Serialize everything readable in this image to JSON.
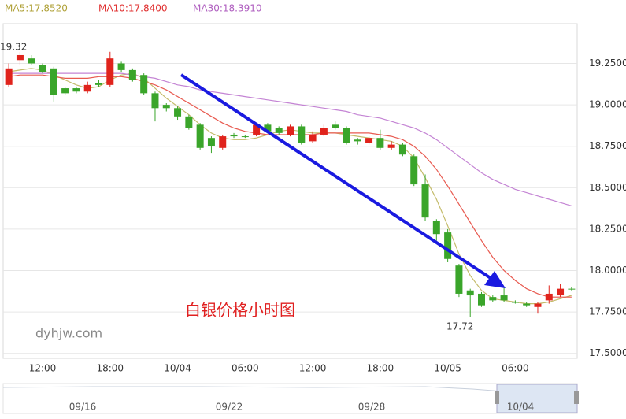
{
  "chart_data": {
    "type": "candlestick",
    "categories": [
      null,
      null,
      null,
      "12:00",
      null,
      null,
      null,
      null,
      null,
      "18:00",
      null,
      null,
      null,
      null,
      null,
      "10/04",
      null,
      null,
      null,
      null,
      null,
      "06:00",
      null,
      null,
      null,
      null,
      null,
      "12:00",
      null,
      null,
      null,
      null,
      null,
      "18:00",
      null,
      null,
      null,
      null,
      null,
      "10/05",
      null,
      null,
      null,
      null,
      null,
      "06:00",
      null,
      null,
      null,
      null,
      null
    ],
    "open": [
      19.12,
      19.27,
      19.28,
      19.24,
      19.22,
      19.1,
      19.1,
      19.08,
      19.13,
      19.12,
      19.25,
      19.21,
      19.18,
      19.07,
      19.0,
      18.98,
      18.93,
      18.88,
      18.8,
      18.74,
      18.82,
      18.81,
      18.82,
      18.88,
      18.86,
      18.82,
      18.87,
      18.78,
      18.82,
      18.88,
      18.86,
      18.79,
      18.77,
      18.8,
      18.74,
      18.76,
      18.69,
      18.52,
      18.3,
      18.23,
      18.03,
      17.88,
      17.86,
      17.84,
      17.85,
      17.81,
      17.8,
      17.78,
      17.82,
      17.85,
      17.89
    ],
    "high": [
      19.25,
      19.32,
      19.3,
      19.25,
      19.23,
      19.11,
      19.11,
      19.14,
      19.15,
      19.32,
      19.26,
      19.22,
      19.19,
      19.08,
      19.01,
      18.99,
      18.94,
      18.89,
      18.81,
      18.82,
      18.83,
      18.82,
      18.89,
      18.89,
      18.87,
      18.88,
      18.88,
      18.84,
      18.88,
      18.9,
      18.87,
      18.8,
      18.81,
      18.85,
      18.78,
      18.77,
      18.7,
      18.58,
      18.31,
      18.25,
      18.04,
      17.89,
      17.87,
      17.85,
      17.9,
      17.82,
      17.81,
      17.81,
      17.91,
      17.92,
      17.9
    ],
    "low": [
      19.11,
      19.24,
      19.24,
      19.19,
      19.02,
      19.06,
      19.07,
      19.07,
      19.11,
      19.11,
      19.2,
      19.14,
      19.06,
      18.9,
      18.96,
      18.91,
      18.85,
      18.73,
      18.71,
      18.73,
      18.8,
      18.8,
      18.81,
      18.83,
      18.82,
      18.81,
      18.76,
      18.77,
      18.81,
      18.85,
      18.76,
      18.76,
      18.76,
      18.73,
      18.73,
      18.69,
      18.51,
      18.3,
      18.18,
      18.05,
      17.84,
      17.72,
      17.78,
      17.81,
      17.81,
      17.8,
      17.78,
      17.74,
      17.8,
      17.84,
      17.88
    ],
    "close": [
      19.22,
      19.3,
      19.25,
      19.2,
      19.06,
      19.07,
      19.08,
      19.12,
      19.12,
      19.28,
      19.21,
      19.15,
      19.07,
      18.98,
      18.98,
      18.93,
      18.86,
      18.74,
      18.75,
      18.81,
      18.81,
      18.81,
      18.88,
      18.84,
      18.83,
      18.87,
      18.77,
      18.82,
      18.86,
      18.86,
      18.77,
      18.78,
      18.8,
      18.74,
      18.76,
      18.7,
      18.52,
      18.32,
      18.22,
      18.07,
      17.86,
      17.85,
      17.79,
      17.82,
      17.82,
      17.81,
      17.79,
      17.8,
      17.86,
      17.89,
      17.89
    ],
    "up_color": "#e0231c",
    "down_color": "#3aa52a",
    "series": [
      {
        "name": "MA5:17.8520",
        "color": "#c4bb6a",
        "legend_color": "#b0a23a",
        "values": [
          19.2,
          19.21,
          19.22,
          19.21,
          19.18,
          19.15,
          19.12,
          19.1,
          19.11,
          19.15,
          19.18,
          19.19,
          19.16,
          19.1,
          19.04,
          18.99,
          18.94,
          18.88,
          18.83,
          18.8,
          18.79,
          18.79,
          18.8,
          18.82,
          18.84,
          18.85,
          18.84,
          18.83,
          18.83,
          18.83,
          18.82,
          18.81,
          18.8,
          18.79,
          18.78,
          18.75,
          18.68,
          18.56,
          18.43,
          18.27,
          18.1,
          17.97,
          17.88,
          17.83,
          17.82,
          17.81,
          17.8,
          17.8,
          17.81,
          17.83,
          17.85
        ]
      },
      {
        "name": "MA10:17.8400",
        "color": "#e85a50",
        "legend_color": "#e03030",
        "values": [
          19.17,
          19.18,
          19.18,
          19.18,
          19.17,
          19.16,
          19.16,
          19.16,
          19.17,
          19.17,
          19.17,
          19.16,
          19.14,
          19.12,
          19.09,
          19.05,
          19.01,
          18.97,
          18.93,
          18.89,
          18.86,
          18.84,
          18.83,
          18.82,
          18.82,
          18.82,
          18.82,
          18.82,
          18.83,
          18.83,
          18.83,
          18.83,
          18.83,
          18.82,
          18.81,
          18.79,
          18.75,
          18.69,
          18.61,
          18.51,
          18.4,
          18.29,
          18.18,
          18.08,
          18.0,
          17.94,
          17.89,
          17.86,
          17.84,
          17.84,
          17.84
        ]
      },
      {
        "name": "MA30:18.3910",
        "color": "#c484d4",
        "legend_color": "#b060c0",
        "values": [
          19.19,
          19.19,
          19.19,
          19.19,
          19.19,
          19.19,
          19.19,
          19.19,
          19.19,
          19.19,
          19.19,
          19.18,
          19.17,
          19.16,
          19.14,
          19.12,
          19.11,
          19.09,
          19.08,
          19.07,
          19.06,
          19.05,
          19.04,
          19.03,
          19.02,
          19.01,
          19.0,
          18.99,
          18.98,
          18.97,
          18.96,
          18.94,
          18.93,
          18.92,
          18.9,
          18.88,
          18.86,
          18.83,
          18.79,
          18.74,
          18.69,
          18.64,
          18.59,
          18.55,
          18.52,
          18.49,
          18.47,
          18.45,
          18.43,
          18.41,
          18.39
        ]
      }
    ],
    "ylim": [
      17.47,
      19.49
    ],
    "yticks": [
      {
        "value": 17.5,
        "label": "17.5000"
      },
      {
        "value": 17.75,
        "label": "17.7500"
      },
      {
        "value": 18,
        "label": "18.0000"
      },
      {
        "value": 18.25,
        "label": "18.2500"
      },
      {
        "value": 18.5,
        "label": "18.5000"
      },
      {
        "value": 18.75,
        "label": "18.7500"
      },
      {
        "value": 19,
        "label": "19.0000"
      },
      {
        "value": 19.25,
        "label": "19.2500"
      }
    ],
    "grid": true,
    "annotations": {
      "watermark": "白银价格小时图",
      "site": "dyhjw.com"
    },
    "navigator_labels": [
      "09/16",
      "09/22",
      "09/28",
      "10/04"
    ]
  }
}
